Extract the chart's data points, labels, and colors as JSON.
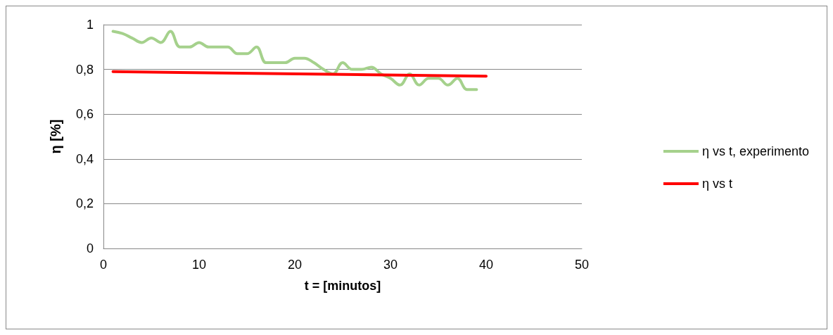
{
  "chart_data": {
    "type": "line",
    "xlabel": "t = [minutos]",
    "ylabel": "η [%]",
    "xlim": [
      0,
      50
    ],
    "xticks": [
      0,
      10,
      20,
      30,
      40,
      50
    ],
    "ylim": [
      0,
      1
    ],
    "yticks": [
      {
        "value": 0,
        "label": "0"
      },
      {
        "value": 0.2,
        "label": "0,2"
      },
      {
        "value": 0.4,
        "label": "0,4"
      },
      {
        "value": 0.6,
        "label": "0,6"
      },
      {
        "value": 0.8,
        "label": "0,8"
      },
      {
        "value": 1,
        "label": "1"
      }
    ],
    "grid": "y",
    "legend": "right",
    "marker": "none",
    "series": [
      {
        "name": "η vs t, experimento",
        "color": "#a5d18c",
        "x": [
          1,
          2,
          3,
          4,
          5,
          6,
          7,
          8,
          9,
          10,
          11,
          12,
          13,
          14,
          15,
          16,
          17,
          18,
          19,
          20,
          21,
          22,
          23,
          24,
          25,
          26,
          27,
          28,
          29,
          30,
          31,
          32,
          33,
          34,
          35,
          36,
          37,
          38,
          39
        ],
        "values": [
          0.97,
          0.96,
          0.94,
          0.92,
          0.94,
          0.92,
          0.97,
          0.9,
          0.9,
          0.92,
          0.9,
          0.9,
          0.9,
          0.87,
          0.87,
          0.9,
          0.83,
          0.83,
          0.83,
          0.85,
          0.85,
          0.83,
          0.8,
          0.78,
          0.83,
          0.8,
          0.8,
          0.81,
          0.78,
          0.76,
          0.73,
          0.78,
          0.73,
          0.76,
          0.76,
          0.73,
          0.76,
          0.71,
          0.71
        ]
      },
      {
        "name": "η vs t",
        "color": "#ff0000",
        "x": [
          1,
          40
        ],
        "values": [
          0.79,
          0.77
        ]
      }
    ]
  }
}
